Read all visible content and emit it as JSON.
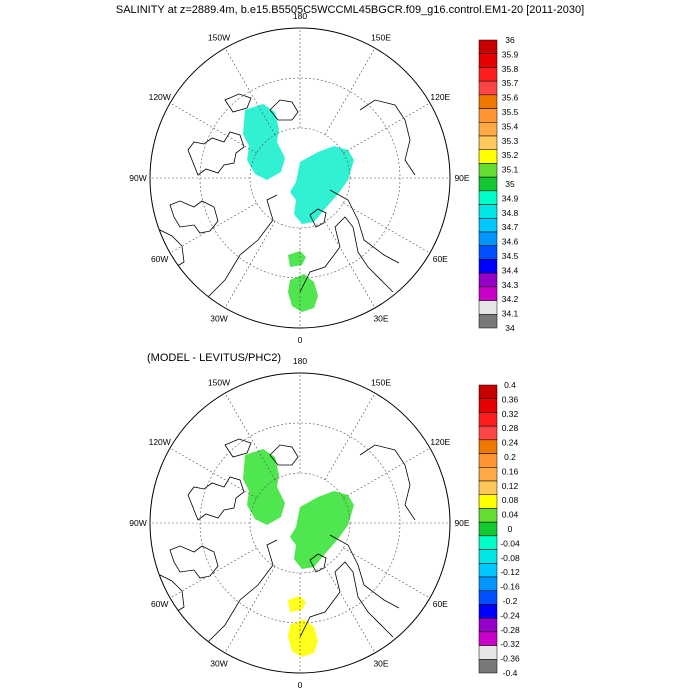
{
  "title": "SALINITY at z=2889.4m, b.e15.B5505C5WCCML45BGCR.f09_g16.control.EM1-20 [2011-2030]",
  "panels": [
    {
      "subtitle": "",
      "longitude_labels": [
        "180",
        "150E",
        "120E",
        "90E",
        "60E",
        "30E",
        "0",
        "30W",
        "60W",
        "90W",
        "120W",
        "150W"
      ],
      "colorbar": {
        "labels": [
          "36",
          "35.9",
          "35.8",
          "35.7",
          "35.6",
          "35.5",
          "35.4",
          "35.3",
          "35.2",
          "35.1",
          "35",
          "34.9",
          "34.8",
          "34.7",
          "34.6",
          "34.5",
          "34.4",
          "34.3",
          "34.2",
          "34.1",
          "34"
        ],
        "colors": [
          "#c80000",
          "#e60000",
          "#ff1e1e",
          "#ff4646",
          "#f07800",
          "#ff9632",
          "#ffaa46",
          "#ffc85a",
          "#ffff00",
          "#64dc32",
          "#14c832",
          "#00ffc8",
          "#00e6e6",
          "#00c8ff",
          "#0096ff",
          "#0050ff",
          "#0000ff",
          "#9600c8",
          "#c800c8",
          "#e6e6e6",
          "#787878"
        ]
      },
      "colors": {
        "north_patch": "#32f0d2",
        "south_patch": "#50e650",
        "edge_patch": "#50e650"
      }
    },
    {
      "subtitle": "(MODEL - LEVITUS/PHC2)",
      "longitude_labels": [
        "180",
        "150E",
        "120E",
        "90E",
        "60E",
        "30E",
        "0",
        "30W",
        "60W",
        "90W",
        "120W",
        "150W"
      ],
      "colorbar": {
        "labels": [
          "0.4",
          "0.36",
          "0.32",
          "0.28",
          "0.24",
          "0.2",
          "0.16",
          "0.12",
          "0.08",
          "0.04",
          "0",
          "-0.04",
          "-0.08",
          "-0.12",
          "-0.16",
          "-0.2",
          "-0.24",
          "-0.28",
          "-0.32",
          "-0.36",
          "-0.4"
        ],
        "colors": [
          "#c80000",
          "#e60000",
          "#ff1e1e",
          "#ff4646",
          "#f07800",
          "#ff9632",
          "#ffaa46",
          "#ffc85a",
          "#ffff00",
          "#64dc32",
          "#14c832",
          "#00ffc8",
          "#00e6e6",
          "#00c8ff",
          "#0096ff",
          "#0050ff",
          "#0000ff",
          "#9600c8",
          "#c800c8",
          "#e6e6e6",
          "#787878"
        ]
      },
      "colors": {
        "north_patch": "#50e650",
        "south_patch": "#ffff1e",
        "edge_patch": "#ffaa46"
      }
    }
  ]
}
